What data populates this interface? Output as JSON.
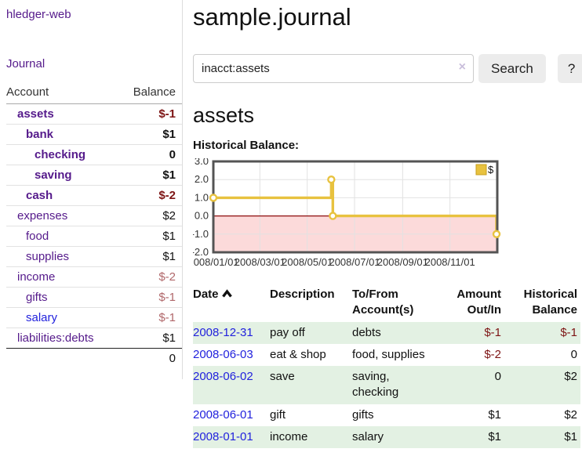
{
  "colors": {
    "link_purple": "#551a8b",
    "link_blue": "#2222dd",
    "negative_strong": "#7d1414",
    "negative_soft": "#b0676a",
    "row_stripe_green": "#e3f1e3",
    "button_gray": "#ececec"
  },
  "sidebar": {
    "app_title": "hledger-web",
    "journal_link": "Journal",
    "header": {
      "account": "Account",
      "balance": "Balance"
    },
    "accounts": [
      {
        "name": "assets",
        "depth": 1,
        "bold": true,
        "link_color": "purple",
        "balance": "$-1",
        "balance_class": "neg-strong"
      },
      {
        "name": "bank",
        "depth": 2,
        "bold": true,
        "link_color": "purple",
        "balance": "$1",
        "balance_class": ""
      },
      {
        "name": "checking",
        "depth": 3,
        "bold": true,
        "link_color": "purple",
        "balance": "0",
        "balance_class": ""
      },
      {
        "name": "saving",
        "depth": 3,
        "bold": true,
        "link_color": "purple",
        "balance": "$1",
        "balance_class": ""
      },
      {
        "name": "cash",
        "depth": 2,
        "bold": true,
        "link_color": "purple",
        "balance": "$-2",
        "balance_class": "neg-strong"
      },
      {
        "name": "expenses",
        "depth": 1,
        "bold": false,
        "link_color": "purple",
        "balance": "$2",
        "balance_class": ""
      },
      {
        "name": "food",
        "depth": 2,
        "bold": false,
        "link_color": "purple",
        "balance": "$1",
        "balance_class": ""
      },
      {
        "name": "supplies",
        "depth": 2,
        "bold": false,
        "link_color": "purple",
        "balance": "$1",
        "balance_class": ""
      },
      {
        "name": "income",
        "depth": 1,
        "bold": false,
        "link_color": "purple",
        "balance": "$-2",
        "balance_class": "neg-soft"
      },
      {
        "name": "gifts",
        "depth": 2,
        "bold": false,
        "link_color": "purple",
        "balance": "$-1",
        "balance_class": "neg-soft"
      },
      {
        "name": "salary",
        "depth": 2,
        "bold": false,
        "link_color": "blue",
        "balance": "$-1",
        "balance_class": "neg-soft"
      },
      {
        "name": "liabilities:debts",
        "depth": 1,
        "bold": false,
        "link_color": "purple",
        "balance": "$1",
        "balance_class": ""
      }
    ],
    "total": "0"
  },
  "main": {
    "title": "sample.journal",
    "search": {
      "value": "inacct:assets",
      "clear_label": "×",
      "search_button": "Search",
      "help_button": "?"
    },
    "account_heading": "assets",
    "hist_label": "Historical Balance:"
  },
  "chart_data": {
    "type": "line",
    "step": true,
    "title": "Historical Balance",
    "series": [
      {
        "name": "$",
        "color": "#e8c23f",
        "points": [
          [
            "2008-01-01",
            1
          ],
          [
            "2008-06-01",
            2
          ],
          [
            "2008-06-03",
            0
          ],
          [
            "2008-12-31",
            -1
          ]
        ]
      }
    ],
    "x_range": [
      "2008-01-01",
      "2009-01-01"
    ],
    "x_ticks": [
      "2008/01/01",
      "2008/03/01",
      "2008/05/01",
      "2008/07/01",
      "2008/09/01",
      "2008/11/01"
    ],
    "y_ticks": [
      3.0,
      2.0,
      1.0,
      0.0,
      -1.0,
      -2.0
    ],
    "ylim": [
      -2,
      3
    ],
    "grid": true,
    "grid_color": "#e2e2e2",
    "border_color": "#545454",
    "zero_line_color": "#8e0e0e",
    "negative_region_color": "#fcdada",
    "marker_fill": "#ffffff",
    "legend": {
      "label": "$",
      "position": "top-right"
    }
  },
  "register": {
    "headers": [
      "Date",
      "Description",
      "To/From Account(s)",
      "Amount Out/In",
      "Historical Balance"
    ],
    "sort": {
      "column": "Date",
      "direction": "asc"
    },
    "rows": [
      {
        "date": "2008-12-31",
        "description": "pay off",
        "accounts": "debts",
        "amount": "$-1",
        "balance": "$-1"
      },
      {
        "date": "2008-06-03",
        "description": "eat & shop",
        "accounts": "food, supplies",
        "amount": "$-2",
        "balance": "0"
      },
      {
        "date": "2008-06-02",
        "description": "save",
        "accounts": "saving, checking",
        "amount": "0",
        "balance": "$2"
      },
      {
        "date": "2008-06-01",
        "description": "gift",
        "accounts": "gifts",
        "amount": "$1",
        "balance": "$2"
      },
      {
        "date": "2008-01-01",
        "description": "income",
        "accounts": "salary",
        "amount": "$1",
        "balance": "$1"
      }
    ]
  }
}
